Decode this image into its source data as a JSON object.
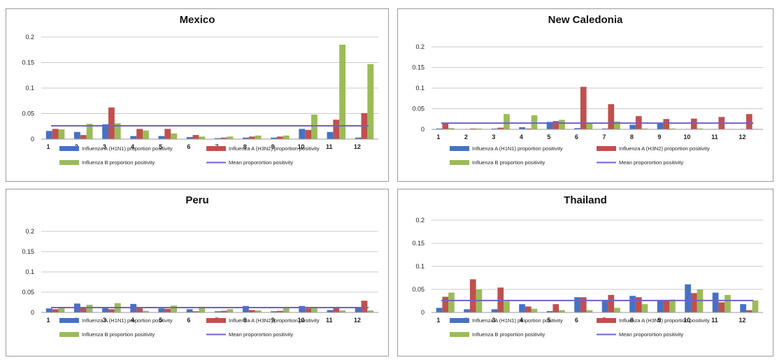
{
  "colors": {
    "h1n1": "#4472c4",
    "h3n2": "#c0504d",
    "fluB": "#9bbb59",
    "mean": "#7060c8",
    "grid": "#c8c8c8"
  },
  "legend": {
    "h1n1": "Influenza A (H1N1) proportion positivity",
    "h3n2": "Influenza A (H3N2) proportion positivity",
    "fluB": "Influenza B proportion positivity",
    "mean": "Mean proporortion positivity"
  },
  "chart_data": [
    {
      "id": "mexico",
      "type": "bar",
      "title": "Mexico",
      "categories": [
        "1",
        "2",
        "3",
        "4",
        "5",
        "6",
        "7",
        "8",
        "9",
        "10",
        "11",
        "12"
      ],
      "ylim": [
        0,
        0.2
      ],
      "yticks": [
        "0",
        "0.05",
        "0.1",
        "0.15",
        "0.2"
      ],
      "ytick_values": [
        0,
        0.05,
        0.1,
        0.15,
        0.2
      ],
      "grid": true,
      "legend_position": "bottom",
      "series": [
        {
          "key": "h1n1",
          "values": [
            0.016,
            0.014,
            0.029,
            0.006,
            0.006,
            0.004,
            0.002,
            0.003,
            0.003,
            0.02,
            0.014,
            0.003
          ]
        },
        {
          "key": "h3n2",
          "values": [
            0.02,
            0.008,
            0.062,
            0.02,
            0.02,
            0.008,
            0.003,
            0.005,
            0.005,
            0.018,
            0.038,
            0.051
          ]
        },
        {
          "key": "fluB",
          "values": [
            0.019,
            0.03,
            0.031,
            0.017,
            0.011,
            0.005,
            0.005,
            0.007,
            0.007,
            0.048,
            0.185,
            0.147
          ]
        }
      ],
      "mean": 0.026
    },
    {
      "id": "newcaledonia",
      "type": "bar",
      "title": "New Caledonia",
      "categories": [
        "1",
        "2",
        "3",
        "4",
        "5",
        "6",
        "7",
        "8",
        "9",
        "10",
        "11",
        "12"
      ],
      "ylim": [
        0,
        0.2
      ],
      "yticks": [
        "0",
        "0.05",
        "0.1",
        "0.15",
        "0.2"
      ],
      "ytick_values": [
        0,
        0.05,
        0.1,
        0.15,
        0.2
      ],
      "grid": true,
      "legend_position": "bottom",
      "series": [
        {
          "key": "h1n1",
          "values": [
            0.002,
            0.001,
            0.002,
            0.005,
            0.018,
            0.003,
            0.002,
            0.011,
            0.015,
            0.001,
            0.001,
            0.001
          ]
        },
        {
          "key": "h3n2",
          "values": [
            0.014,
            0.002,
            0.004,
            0.002,
            0.02,
            0.103,
            0.061,
            0.032,
            0.025,
            0.026,
            0.03,
            0.037
          ]
        },
        {
          "key": "fluB",
          "values": [
            0.003,
            0.002,
            0.037,
            0.034,
            0.023,
            0.015,
            0.019,
            0.002,
            0.002,
            0.002,
            0.001,
            0.001
          ]
        }
      ],
      "mean": 0.015
    },
    {
      "id": "peru",
      "type": "bar",
      "title": "Peru",
      "categories": [
        "1",
        "2",
        "3",
        "4",
        "5",
        "6",
        "7",
        "8",
        "9",
        "10",
        "11",
        "12"
      ],
      "ylim": [
        0,
        0.2
      ],
      "yticks": [
        "0",
        "0.05",
        "0.1",
        "0.15",
        "0.2"
      ],
      "ytick_values": [
        0,
        0.05,
        0.1,
        0.15,
        0.2
      ],
      "grid": true,
      "legend_position": "bottom",
      "series": [
        {
          "key": "h1n1",
          "values": [
            0.01,
            0.022,
            0.012,
            0.021,
            0.01,
            0.008,
            0.003,
            0.016,
            0.003,
            0.016,
            0.006,
            0.012
          ]
        },
        {
          "key": "h3n2",
          "values": [
            0.008,
            0.012,
            0.008,
            0.011,
            0.009,
            0.003,
            0.004,
            0.006,
            0.004,
            0.01,
            0.012,
            0.029
          ]
        },
        {
          "key": "fluB",
          "values": [
            0.012,
            0.019,
            0.023,
            0.004,
            0.017,
            0.014,
            0.008,
            0.005,
            0.013,
            0.014,
            0.005,
            0.005
          ]
        }
      ],
      "mean": 0.012
    },
    {
      "id": "thailand",
      "type": "bar",
      "title": "Thailand",
      "categories": [
        "1",
        "2",
        "3",
        "4",
        "5",
        "6",
        "7",
        "8",
        "9",
        "10",
        "11",
        "12"
      ],
      "ylim": [
        0,
        0.2
      ],
      "yticks": [
        "0",
        "0.05",
        "0.1",
        "0.15",
        "0.2"
      ],
      "ytick_values": [
        0,
        0.05,
        0.1,
        0.15,
        0.2
      ],
      "grid": true,
      "legend_position": "bottom",
      "series": [
        {
          "key": "h1n1",
          "values": [
            0.01,
            0.007,
            0.007,
            0.018,
            0.003,
            0.033,
            0.026,
            0.036,
            0.026,
            0.061,
            0.043,
            0.018
          ]
        },
        {
          "key": "h3n2",
          "values": [
            0.034,
            0.072,
            0.054,
            0.013,
            0.018,
            0.033,
            0.038,
            0.033,
            0.025,
            0.042,
            0.022,
            0.005
          ]
        },
        {
          "key": "fluB",
          "values": [
            0.043,
            0.05,
            0.024,
            0.008,
            0.005,
            0.005,
            0.01,
            0.018,
            0.028,
            0.05,
            0.038,
            0.026
          ]
        }
      ],
      "mean": 0.026
    }
  ]
}
